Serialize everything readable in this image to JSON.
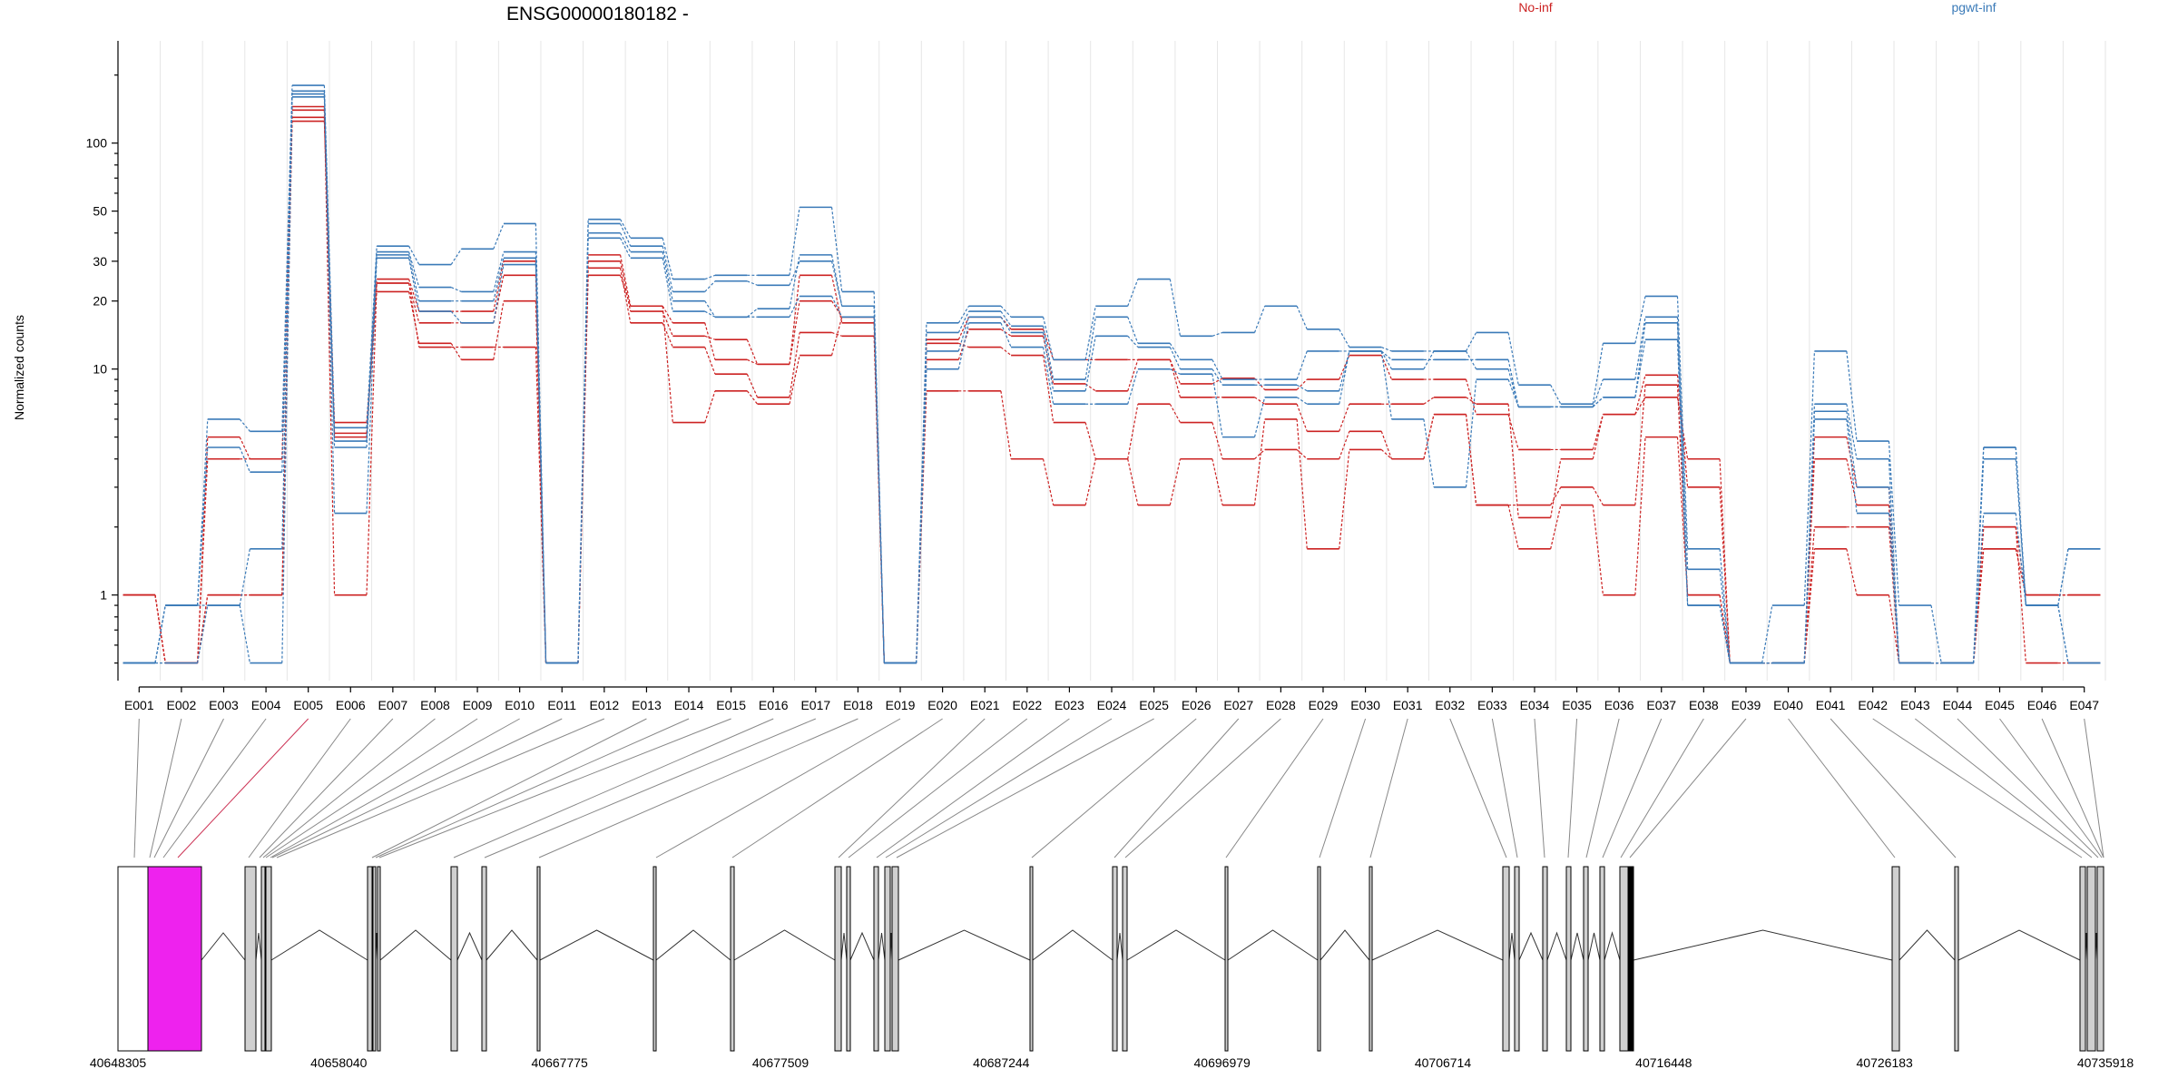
{
  "chart_data": {
    "type": "line",
    "title": "ENSG00000180182 -",
    "ylabel": "Normalized counts",
    "yscale": "log",
    "ylim": [
      0.45,
      240
    ],
    "yticks": [
      1,
      10,
      20,
      30,
      50,
      100
    ],
    "legend": [
      "No-inf",
      "pgwt-inf"
    ],
    "legend_position": "top-right",
    "colors": {
      "No-inf": "#cc2222",
      "pgwt-inf": "#3a7ab8"
    },
    "categories": [
      "E001",
      "E002",
      "E003",
      "E004",
      "E005",
      "E006",
      "E007",
      "E008",
      "E009",
      "E010",
      "E011",
      "E012",
      "E013",
      "E014",
      "E015",
      "E016",
      "E017",
      "E018",
      "E019",
      "E020",
      "E021",
      "E022",
      "E023",
      "E024",
      "E025",
      "E026",
      "E027",
      "E028",
      "E029",
      "E030",
      "E031",
      "E032",
      "E033",
      "E034",
      "E035",
      "E036",
      "E037",
      "E038",
      "E039",
      "E040",
      "E041",
      "E042",
      "E043",
      "E044",
      "E045",
      "E046",
      "E047"
    ],
    "series": [
      {
        "group": "No-inf",
        "values": [
          1,
          0.5,
          5,
          4,
          130,
          5.2,
          25,
          18,
          18,
          30,
          0.5,
          32,
          19,
          16,
          11,
          10.5,
          20,
          17,
          0.5,
          13.5,
          17,
          15,
          11,
          11,
          11,
          8.6,
          9.1,
          8.1,
          9,
          11.5,
          9,
          9,
          6.3,
          4.4,
          4.4,
          6.3,
          7.5,
          4,
          0.5,
          0.5,
          4,
          2.5,
          0.5,
          0.5,
          2,
          1,
          1
        ]
      },
      {
        "group": "No-inf",
        "values": [
          1,
          0.5,
          4,
          4,
          140,
          1,
          24,
          16,
          16,
          26,
          0.5,
          30,
          18,
          14,
          13.5,
          10.5,
          26,
          16,
          0.5,
          11,
          15,
          14,
          8.6,
          8,
          11,
          7.5,
          7.5,
          7,
          5.3,
          7,
          7,
          7.5,
          7,
          2.2,
          4,
          6.3,
          9.4,
          3,
          0.5,
          0.5,
          5,
          3,
          0.5,
          0.5,
          2,
          0.5,
          0.5
        ]
      },
      {
        "group": "No-inf",
        "values": [
          1,
          0.5,
          1,
          1,
          125,
          5.8,
          22,
          13,
          11,
          20,
          0.5,
          28,
          16,
          12.5,
          9.5,
          7.5,
          14.5,
          14,
          0.5,
          8,
          8,
          4,
          2.5,
          4,
          2.5,
          4,
          2.5,
          6,
          1.6,
          4.4,
          4,
          6.3,
          2.5,
          1.6,
          2.5,
          1,
          5,
          1,
          0.5,
          0.5,
          1.6,
          1,
          0.5,
          0.5,
          1.6,
          1,
          1
        ]
      },
      {
        "group": "No-inf",
        "values": [
          1,
          0.5,
          1,
          1,
          145,
          5,
          24,
          12.5,
          12.5,
          12.5,
          0.5,
          26,
          19,
          5.8,
          8,
          7,
          11.5,
          17,
          0.5,
          13,
          12.5,
          11.5,
          5.8,
          4,
          7,
          5.8,
          4,
          4.4,
          4,
          5.3,
          4,
          6.3,
          2.5,
          2.5,
          3,
          2.5,
          8.5,
          1,
          0.5,
          0.5,
          2,
          2,
          0.5,
          0.5,
          1.6,
          1,
          1
        ]
      },
      {
        "group": "pgwt-inf",
        "values": [
          0.5,
          0.9,
          6,
          5.3,
          180,
          5.5,
          35,
          29,
          34,
          44,
          0.5,
          46,
          38,
          25,
          26,
          26,
          52,
          22,
          0.5,
          16,
          19,
          17,
          11,
          19,
          25,
          14,
          14.5,
          19,
          15,
          12.5,
          12,
          12,
          14.5,
          8.5,
          7,
          13,
          21,
          1.6,
          0.5,
          0.9,
          12,
          4.8,
          0.9,
          0.5,
          4.5,
          0.9,
          1.6
        ]
      },
      {
        "group": "pgwt-inf",
        "values": [
          0.5,
          0.9,
          4.5,
          3.5,
          165,
          4.5,
          33,
          23,
          22,
          33,
          0.5,
          44,
          35,
          22,
          24.5,
          23.5,
          30,
          19,
          0.5,
          14.5,
          18,
          15.5,
          9,
          17,
          13,
          11,
          9,
          9,
          12,
          12,
          11,
          11,
          11,
          6.8,
          6.8,
          9,
          17,
          1.3,
          0.5,
          0.5,
          7,
          4,
          0.5,
          0.5,
          4.5,
          0.9,
          1.6
        ]
      },
      {
        "group": "pgwt-inf",
        "values": [
          0.5,
          0.5,
          0.9,
          1.6,
          170,
          4.8,
          32,
          20,
          20,
          31,
          0.5,
          40,
          33,
          20,
          17,
          18.5,
          32,
          19,
          0.5,
          12,
          17,
          14.5,
          8,
          14,
          12.5,
          10,
          8.5,
          8.5,
          8,
          12,
          10,
          12,
          10,
          6.8,
          6.8,
          7.5,
          16,
          0.9,
          0.5,
          0.5,
          6.5,
          3,
          0.5,
          0.5,
          4,
          0.9,
          0.5
        ]
      },
      {
        "group": "pgwt-inf",
        "values": [
          0.5,
          0.9,
          0.9,
          0.5,
          160,
          2.3,
          31,
          18,
          16,
          29,
          0.5,
          38,
          31,
          18,
          17,
          17,
          21,
          17,
          0.5,
          10,
          16,
          12.5,
          7,
          7,
          10,
          9.5,
          5,
          7.5,
          7,
          12,
          6,
          3,
          9,
          6.8,
          6.8,
          7.5,
          13.5,
          0.9,
          0.5,
          0.5,
          6,
          2.3,
          0.5,
          0.5,
          2.3,
          0.9,
          0.5
        ]
      }
    ],
    "genome": {
      "coords": [
        "40648305",
        "40658040",
        "40667775",
        "40677509",
        "40687244",
        "40696979",
        "40706714",
        "40716448",
        "40726183",
        "40735918"
      ],
      "highlighted_exon": "E005"
    }
  }
}
